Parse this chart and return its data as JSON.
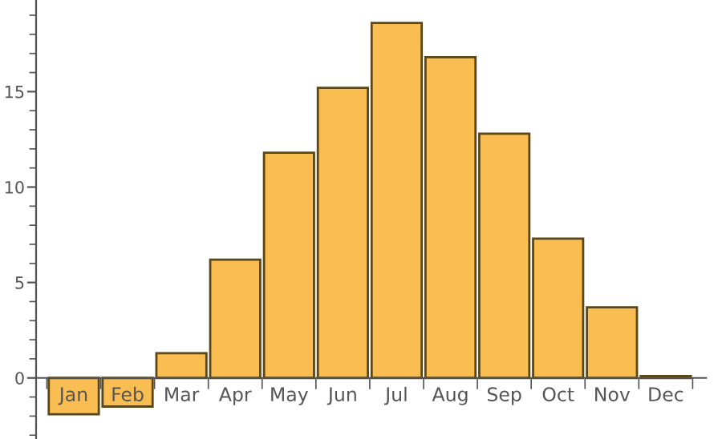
{
  "chart_data": {
    "type": "bar",
    "categories": [
      "Jan",
      "Feb",
      "Mar",
      "Apr",
      "May",
      "Jun",
      "Jul",
      "Aug",
      "Sep",
      "Oct",
      "Nov",
      "Dec"
    ],
    "values": [
      -1.9,
      -1.5,
      1.3,
      6.2,
      11.8,
      15.2,
      18.6,
      16.8,
      12.8,
      7.3,
      3.7,
      0.1
    ],
    "color": "#f9bd51",
    "ylim": [
      -3.2,
      19.8
    ],
    "yticks": [
      0,
      5,
      10,
      15
    ],
    "grid": false
  }
}
